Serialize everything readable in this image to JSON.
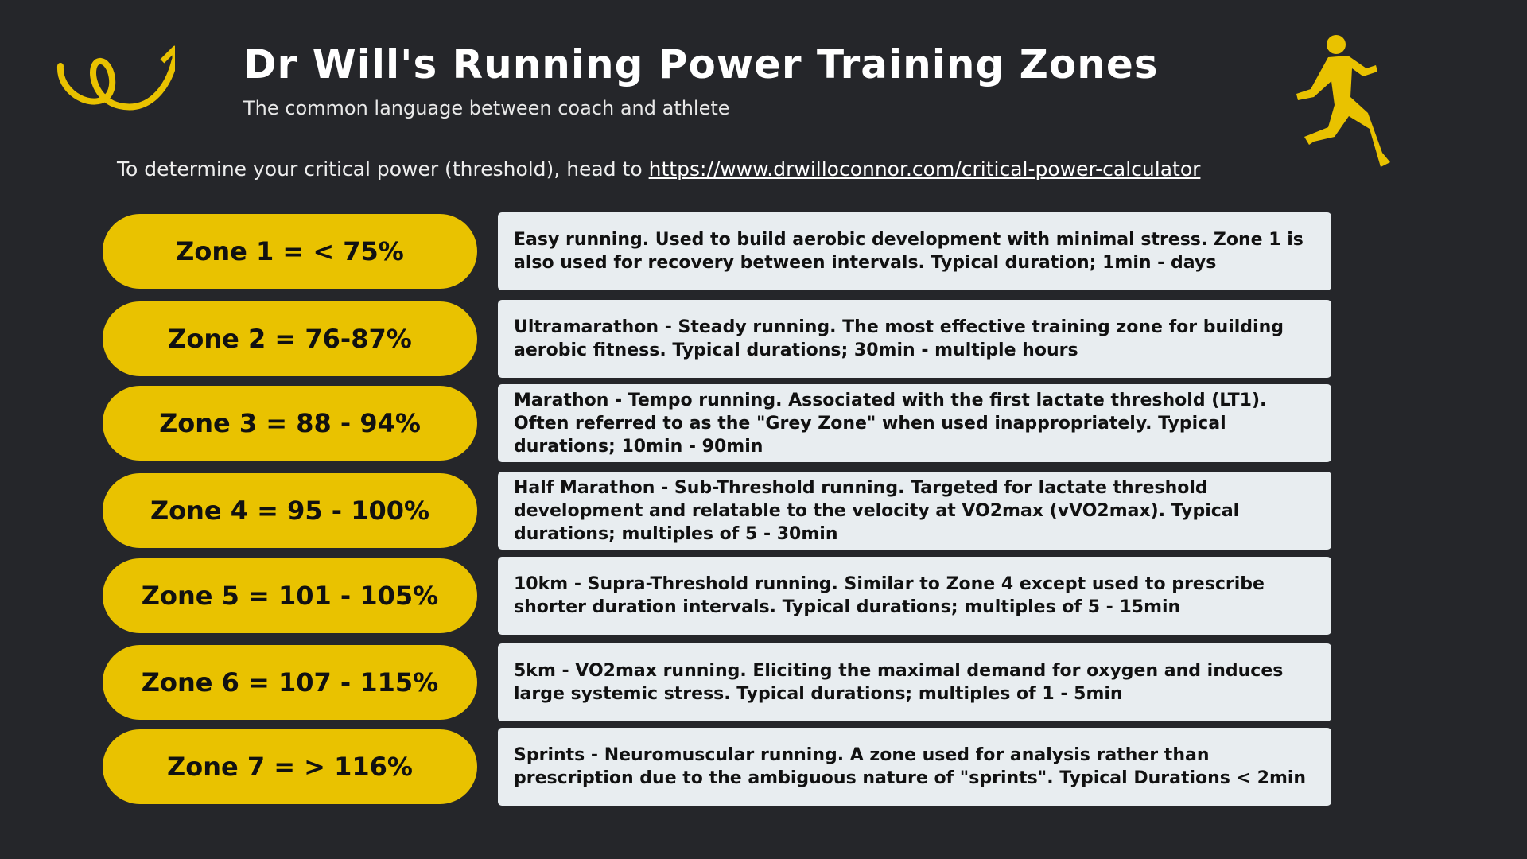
{
  "header": {
    "title": "Dr Will's Running Power Training Zones",
    "subtitle": "The common language between coach and athlete"
  },
  "intro": {
    "text": "To determine your critical power (threshold), head to",
    "link": "https://www.drwilloconnor.com/critical-power-calculator"
  },
  "zones": [
    {
      "label": "Zone 1 = < 75%",
      "description": "Easy running. Used to build aerobic development with minimal stress. Zone 1 is also used for recovery between intervals. Typical duration; 1min - days"
    },
    {
      "label": "Zone 2 = 76-87%",
      "description": "Ultramarathon - Steady running. The most effective training zone for building aerobic fitness. Typical durations; 30min - multiple hours"
    },
    {
      "label": "Zone 3 = 88 - 94%",
      "description": "Marathon - Tempo running. Associated with the first lactate threshold (LT1). Often referred to as the \"Grey Zone\" when used inappropriately. Typical durations; 10min - 90min"
    },
    {
      "label": "Zone 4 = 95 - 100%",
      "description": "Half Marathon - Sub-Threshold running. Targeted for lactate threshold development and relatable to the velocity at VO2max (vVO2max). Typical durations; multiples of 5 - 30min"
    },
    {
      "label": "Zone 5 = 101 - 105%",
      "description": "10km - Supra-Threshold running. Similar to Zone 4 except used to prescribe shorter duration intervals. Typical durations; multiples of 5 - 15min"
    },
    {
      "label": "Zone 6 = 107 - 115%",
      "description": "5km - VO2max running. Eliciting the maximal demand for oxygen and induces large systemic stress. Typical durations; multiples of 1 - 5min"
    },
    {
      "label": "Zone 7 = > 116%",
      "description": "Sprints - Neuromuscular running. A zone used for analysis rather than prescription due to the ambiguous nature of \"sprints\". Typical Durations < 2min"
    }
  ]
}
